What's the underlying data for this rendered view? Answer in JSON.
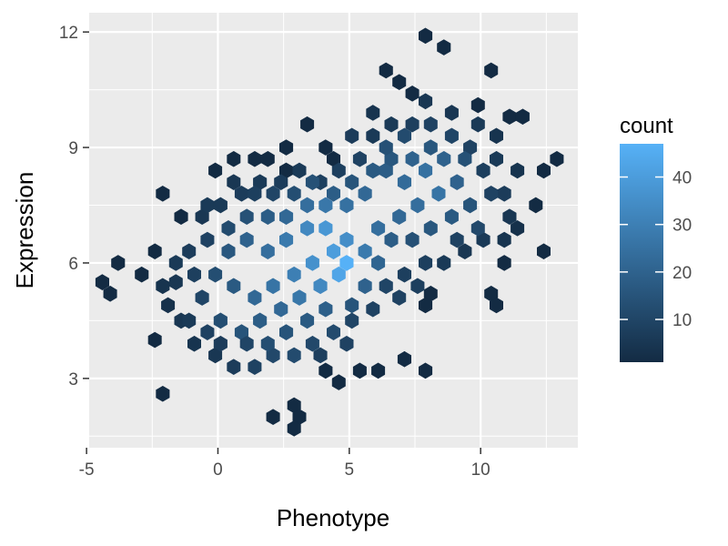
{
  "chart_data": {
    "type": "heatmap",
    "subtype": "hexbin",
    "title": "",
    "xlabel": "Phenotype",
    "ylabel": "Expression",
    "xlim": [
      -4.9,
      13.7
    ],
    "ylim": [
      1.2,
      12.5
    ],
    "xticks": [
      -5,
      0,
      5,
      10
    ],
    "xtick_labels": [
      "-5",
      "0",
      "5",
      "10"
    ],
    "yticks": [
      3,
      6,
      9,
      12
    ],
    "ytick_labels": [
      "3",
      "6",
      "9",
      "12"
    ],
    "grid": true,
    "legend": {
      "title": "count",
      "position": "right",
      "range": [
        1,
        47
      ],
      "ticks": [
        10,
        20,
        30,
        40
      ],
      "tick_labels": [
        "10",
        "20",
        "30",
        "40"
      ],
      "color_low": "#132B43",
      "color_high": "#56B1F7"
    },
    "binning": {
      "x_width": 0.5,
      "y_height": 0.3
    },
    "notes": "Roughly 1000 observations; density peaks near Phenotype 4.6, Expression 5.8 with a positive correlation.",
    "cells": [
      [
        -4.4,
        5.5,
        1
      ],
      [
        -4.1,
        5.2,
        1
      ],
      [
        -3.8,
        6.0,
        1
      ],
      [
        -2.9,
        5.7,
        1
      ],
      [
        -2.4,
        4.0,
        1
      ],
      [
        -2.4,
        6.3,
        1
      ],
      [
        -2.1,
        2.6,
        1
      ],
      [
        -2.1,
        7.8,
        1
      ],
      [
        -1.4,
        7.2,
        1
      ],
      [
        -0.1,
        8.4,
        1
      ],
      [
        0.6,
        8.7,
        1
      ],
      [
        1.4,
        8.7,
        1
      ],
      [
        1.9,
        8.7,
        1
      ],
      [
        2.6,
        8.4,
        1
      ],
      [
        2.1,
        2.0,
        1
      ],
      [
        2.9,
        2.3,
        1
      ],
      [
        3.1,
        2.0,
        1
      ],
      [
        2.9,
        1.7,
        1
      ],
      [
        3.4,
        9.6,
        1
      ],
      [
        2.6,
        9.0,
        1
      ],
      [
        4.4,
        8.7,
        1
      ],
      [
        4.1,
        3.2,
        1
      ],
      [
        4.6,
        2.9,
        1
      ],
      [
        5.4,
        3.2,
        1
      ],
      [
        6.1,
        3.2,
        1
      ],
      [
        7.1,
        3.5,
        1
      ],
      [
        7.9,
        3.2,
        1
      ],
      [
        8.1,
        5.2,
        1
      ],
      [
        7.9,
        4.9,
        1
      ],
      [
        10.4,
        5.2,
        1
      ],
      [
        10.6,
        4.9,
        1
      ],
      [
        10.9,
        6.0,
        1
      ],
      [
        12.4,
        6.3,
        1
      ],
      [
        12.1,
        7.5,
        1
      ],
      [
        12.4,
        8.4,
        1
      ],
      [
        12.9,
        8.7,
        1
      ],
      [
        7.9,
        11.9,
        1
      ],
      [
        8.6,
        11.6,
        1
      ],
      [
        10.4,
        11.0,
        1
      ],
      [
        6.4,
        11.0,
        1
      ],
      [
        7.4,
        10.4,
        1
      ],
      [
        6.9,
        10.7,
        1
      ],
      [
        9.9,
        10.1,
        1
      ],
      [
        11.6,
        9.8,
        1
      ],
      [
        11.1,
        9.8,
        1
      ],
      [
        4.1,
        9.0,
        1
      ],
      [
        -1.9,
        4.9,
        3
      ],
      [
        -1.6,
        5.5,
        5
      ],
      [
        -1.1,
        6.3,
        7
      ],
      [
        -0.6,
        7.2,
        5
      ],
      [
        0.1,
        7.5,
        6
      ],
      [
        0.9,
        7.8,
        7
      ],
      [
        1.6,
        8.1,
        6
      ],
      [
        2.4,
        8.1,
        7
      ],
      [
        3.1,
        8.4,
        6
      ],
      [
        3.9,
        8.1,
        8
      ],
      [
        4.6,
        8.4,
        8
      ],
      [
        5.4,
        8.7,
        9
      ],
      [
        5.9,
        9.3,
        6
      ],
      [
        6.6,
        9.6,
        6
      ],
      [
        7.4,
        9.6,
        8
      ],
      [
        8.1,
        9.6,
        9
      ],
      [
        8.9,
        9.3,
        10
      ],
      [
        9.6,
        9.0,
        9
      ],
      [
        10.1,
        8.4,
        8
      ],
      [
        10.9,
        7.8,
        7
      ],
      [
        11.1,
        7.2,
        5
      ],
      [
        10.9,
        6.6,
        4
      ],
      [
        10.1,
        6.6,
        6
      ],
      [
        9.4,
        6.3,
        5
      ],
      [
        8.6,
        6.0,
        6
      ],
      [
        7.9,
        6.0,
        8
      ],
      [
        7.1,
        5.7,
        8
      ],
      [
        6.4,
        5.4,
        10
      ],
      [
        5.9,
        4.8,
        9
      ],
      [
        5.1,
        4.5,
        10
      ],
      [
        4.4,
        4.2,
        12
      ],
      [
        3.6,
        3.9,
        11
      ],
      [
        2.9,
        3.6,
        12
      ],
      [
        2.1,
        3.6,
        11
      ],
      [
        1.4,
        3.3,
        9
      ],
      [
        0.6,
        3.3,
        7
      ],
      [
        -0.1,
        3.6,
        5
      ],
      [
        -0.9,
        3.9,
        4
      ],
      [
        -1.4,
        4.5,
        5
      ],
      [
        -0.6,
        5.1,
        10
      ],
      [
        0.1,
        4.5,
        13
      ],
      [
        0.9,
        4.2,
        15
      ],
      [
        1.6,
        4.5,
        18
      ],
      [
        2.4,
        4.8,
        22
      ],
      [
        3.1,
        5.1,
        27
      ],
      [
        3.9,
        5.4,
        33
      ],
      [
        4.6,
        5.7,
        43
      ],
      [
        4.9,
        6.0,
        47
      ],
      [
        4.4,
        6.3,
        40
      ],
      [
        3.6,
        6.0,
        36
      ],
      [
        2.9,
        5.7,
        30
      ],
      [
        2.1,
        5.4,
        26
      ],
      [
        1.4,
        5.1,
        22
      ],
      [
        0.6,
        5.4,
        17
      ],
      [
        -0.1,
        5.7,
        13
      ],
      [
        0.4,
        6.3,
        16
      ],
      [
        1.1,
        6.6,
        20
      ],
      [
        1.9,
        6.3,
        24
      ],
      [
        2.6,
        6.6,
        28
      ],
      [
        3.4,
        6.9,
        33
      ],
      [
        4.1,
        6.9,
        38
      ],
      [
        4.9,
        6.6,
        35
      ],
      [
        5.6,
        6.3,
        28
      ],
      [
        6.1,
        6.9,
        24
      ],
      [
        6.9,
        7.2,
        22
      ],
      [
        7.6,
        7.5,
        24
      ],
      [
        8.4,
        7.8,
        26
      ],
      [
        9.1,
        8.1,
        20
      ],
      [
        9.6,
        7.5,
        15
      ],
      [
        9.9,
        6.9,
        11
      ],
      [
        9.4,
        8.7,
        14
      ],
      [
        8.6,
        8.7,
        20
      ],
      [
        7.9,
        8.4,
        25
      ],
      [
        7.1,
        8.1,
        23
      ],
      [
        6.4,
        8.4,
        18
      ],
      [
        5.6,
        7.8,
        22
      ],
      [
        4.9,
        7.5,
        25
      ],
      [
        4.1,
        7.5,
        27
      ],
      [
        3.4,
        7.5,
        24
      ],
      [
        2.6,
        7.2,
        22
      ],
      [
        1.9,
        7.2,
        18
      ],
      [
        1.1,
        7.2,
        14
      ],
      [
        0.4,
        6.9,
        12
      ],
      [
        -0.4,
        6.6,
        9
      ],
      [
        6.6,
        6.6,
        18
      ],
      [
        7.4,
        6.6,
        14
      ],
      [
        8.1,
        6.9,
        16
      ],
      [
        8.9,
        7.2,
        17
      ],
      [
        5.6,
        5.4,
        20
      ],
      [
        6.1,
        6.0,
        21
      ],
      [
        5.1,
        4.9,
        15
      ],
      [
        4.1,
        4.8,
        19
      ],
      [
        3.4,
        4.5,
        17
      ],
      [
        2.6,
        4.2,
        15
      ],
      [
        1.9,
        3.9,
        13
      ],
      [
        1.1,
        3.9,
        10
      ],
      [
        6.9,
        5.1,
        9
      ],
      [
        7.6,
        5.4,
        8
      ],
      [
        3.9,
        3.6,
        8
      ],
      [
        4.9,
        3.9,
        9
      ],
      [
        9.1,
        6.6,
        9
      ],
      [
        10.4,
        7.8,
        9
      ],
      [
        10.6,
        8.7,
        6
      ],
      [
        -0.9,
        5.7,
        8
      ],
      [
        -1.6,
        6.0,
        6
      ],
      [
        -2.1,
        5.4,
        4
      ],
      [
        -1.1,
        4.5,
        6
      ],
      [
        -0.4,
        4.2,
        9
      ],
      [
        0.1,
        3.9,
        7
      ],
      [
        -0.4,
        7.5,
        6
      ],
      [
        0.6,
        8.1,
        5
      ],
      [
        1.4,
        7.8,
        8
      ],
      [
        2.1,
        7.8,
        10
      ],
      [
        2.9,
        7.8,
        13
      ],
      [
        3.6,
        8.1,
        14
      ],
      [
        4.4,
        7.8,
        18
      ],
      [
        5.1,
        8.1,
        15
      ],
      [
        5.9,
        8.4,
        17
      ],
      [
        6.6,
        8.7,
        16
      ],
      [
        7.4,
        8.7,
        20
      ],
      [
        8.1,
        9.0,
        16
      ],
      [
        8.9,
        9.9,
        5
      ],
      [
        7.9,
        10.2,
        5
      ],
      [
        5.9,
        9.9,
        4
      ],
      [
        5.1,
        9.3,
        7
      ],
      [
        6.4,
        9.0,
        14
      ],
      [
        7.1,
        9.3,
        12
      ],
      [
        9.9,
        9.6,
        6
      ],
      [
        10.6,
        9.3,
        4
      ],
      [
        11.4,
        8.4,
        4
      ],
      [
        11.4,
        6.9,
        3
      ]
    ]
  }
}
